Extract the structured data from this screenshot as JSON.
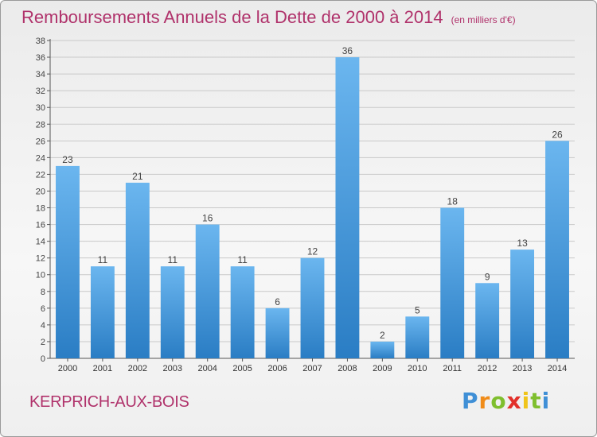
{
  "title": "Remboursements Annuels de la Dette de 2000 à 2014",
  "unit": "(en milliers d'€)",
  "commune": "KERPRICH-AUX-BOIS",
  "logo": {
    "letters": [
      "P",
      "r",
      "o",
      "x",
      "i",
      "t",
      "i"
    ],
    "colors": [
      "#3f8fd6",
      "#f08c1a",
      "#7fbf2e",
      "#e2302a",
      "#f0c419",
      "#7fbf2e",
      "#3f8fd6"
    ]
  },
  "colors": {
    "bar_light": "#6bb6ef",
    "bar_dark": "#2a7dc4",
    "grid": "#c9c9c9",
    "title": "#b0326b"
  },
  "chart_data": {
    "type": "bar",
    "title": "Remboursements Annuels de la Dette de 2000 à 2014",
    "xlabel": "",
    "ylabel": "",
    "categories": [
      "2000",
      "2001",
      "2002",
      "2003",
      "2004",
      "2005",
      "2006",
      "2007",
      "2008",
      "2009",
      "2010",
      "2011",
      "2012",
      "2013",
      "2014"
    ],
    "values": [
      23,
      11,
      21,
      11,
      16,
      11,
      6,
      12,
      36,
      2,
      5,
      18,
      9,
      13,
      26
    ],
    "ylim": [
      0,
      38
    ],
    "yticks": [
      0,
      2,
      4,
      6,
      8,
      10,
      12,
      14,
      16,
      18,
      20,
      22,
      24,
      26,
      28,
      30,
      32,
      34,
      36,
      38
    ],
    "grid": true,
    "legend": "none"
  }
}
